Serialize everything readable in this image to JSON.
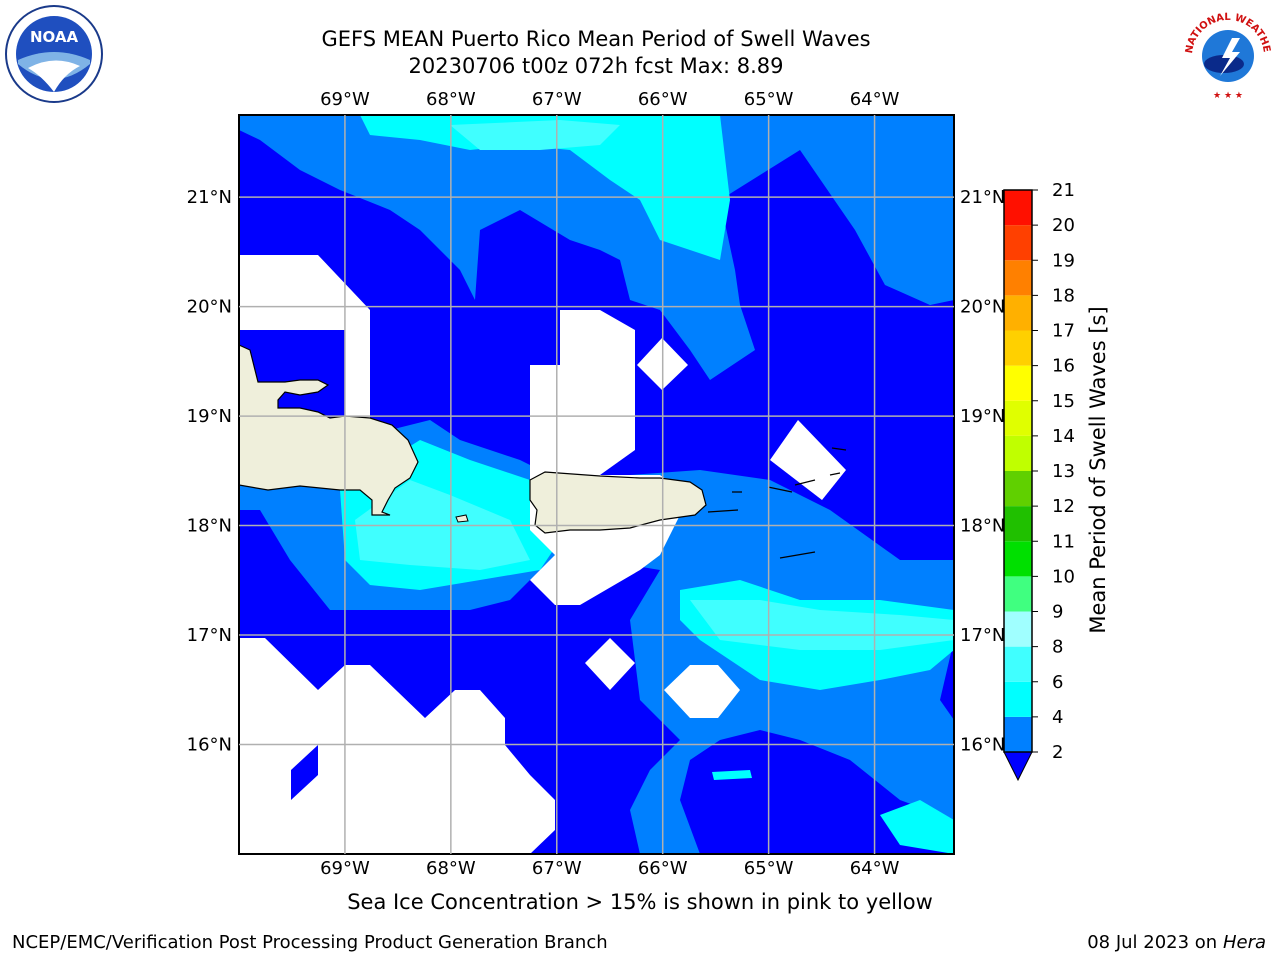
{
  "title_line1": "GEFS MEAN Puerto Rico Mean Period of Swell Waves",
  "title_line2": "20230706 t00z 072h fcst   Max: 8.89",
  "lon_labels": [
    "69°W",
    "68°W",
    "67°W",
    "66°W",
    "65°W",
    "64°W"
  ],
  "lat_labels": [
    "21°N",
    "20°N",
    "19°N",
    "18°N",
    "17°N",
    "16°N"
  ],
  "colorbar": {
    "label": "Mean Period of Swell Waves [s]",
    "ticks": [
      "2",
      "4",
      "6",
      "8",
      "9",
      "10",
      "11",
      "12",
      "13",
      "14",
      "15",
      "16",
      "17",
      "18",
      "19",
      "20",
      "21"
    ],
    "colors": [
      "#0000ff",
      "#0080ff",
      "#00ffff",
      "#40ffff",
      "#a0ffff",
      "#40ff80",
      "#00e000",
      "#20c000",
      "#60d000",
      "#c0ff00",
      "#e0ff00",
      "#ffff00",
      "#ffd000",
      "#ffb000",
      "#ff8000",
      "#ff4000",
      "#ff1000",
      "#ff0000"
    ]
  },
  "map": {
    "extent": {
      "lon_min": -70.0,
      "lon_max": -63.25,
      "lat_min": 15.0,
      "lat_max": 21.75
    },
    "land_color": "#efefdb",
    "ocean_colors": {
      "lt2": "#0000ff",
      "2to4": "#0080ff",
      "4to6": "#00ffff",
      "6to8": "#40ffff"
    }
  },
  "note": "Sea Ice Concentration > 15% is shown in pink to yellow",
  "footer_left": "NCEP/EMC/Verification Post Processing Product Generation Branch",
  "footer_right_prefix": "08 Jul 2023 on ",
  "footer_right_machine": "Hera",
  "logos": {
    "left": {
      "icon": "noaa-logo",
      "text": "NOAA"
    },
    "right": {
      "icon": "nws-logo",
      "text": "NATIONAL WEATHER SERVICE"
    }
  }
}
